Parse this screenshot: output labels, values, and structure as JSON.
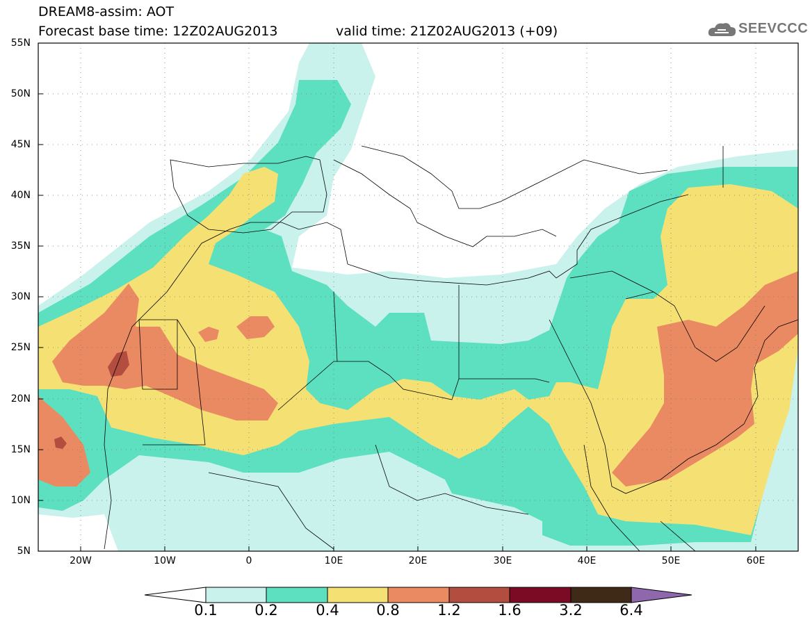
{
  "header": {
    "title": "DREAM8-assim: AOT",
    "base_time": "Forecast base time: 12Z02AUG2013",
    "valid_time": "valid time: 21Z02AUG2013 (+09)",
    "logo_text": "SEEVCCC",
    "logo_icon": "cloud-icon"
  },
  "map": {
    "lat_labels": [
      "55N",
      "50N",
      "45N",
      "40N",
      "35N",
      "30N",
      "25N",
      "20N",
      "15N",
      "10N",
      "5N"
    ],
    "lon_labels": [
      "20W",
      "10W",
      "0",
      "10E",
      "20E",
      "30E",
      "40E",
      "50E",
      "60E"
    ],
    "extent": {
      "lon_min": -25,
      "lon_max": 65,
      "lat_min": 5,
      "lat_max": 55
    },
    "grid": "dotted"
  },
  "colorbar": {
    "labels": [
      "0.1",
      "0.2",
      "0.4",
      "0.8",
      "1.2",
      "1.6",
      "3.2",
      "6.4"
    ],
    "colors": [
      "#ffffff",
      "#c9f2ec",
      "#5ce0bf",
      "#f5e173",
      "#ea8a62",
      "#b24d3f",
      "#7b0a25",
      "#3e2a16",
      "#8e67ad"
    ]
  }
}
